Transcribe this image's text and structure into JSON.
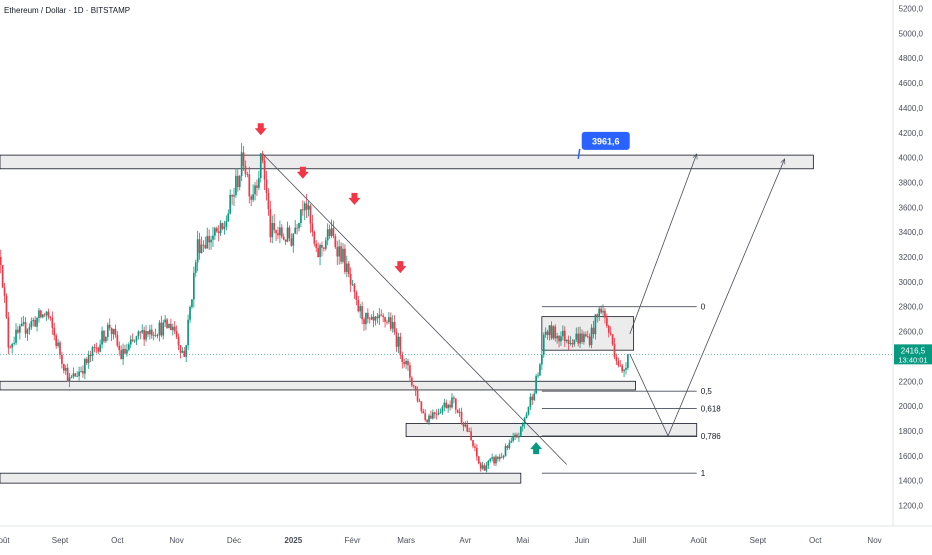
{
  "header": {
    "title": "Ethereum / Dollar · 1D · BITSTAMP"
  },
  "price_tag": {
    "price": "2416,5",
    "countdown": "13:40:01"
  },
  "target_callout": {
    "label": "3961,6"
  },
  "fib_labels": [
    "0",
    "0,5",
    "0,618",
    "0,786",
    "1"
  ],
  "colors": {
    "up": "#089981",
    "down": "#f23645",
    "arrow_down": "#f23645",
    "arrow_up": "#089981",
    "callout": "#2962ff",
    "zone_fill": "#e6e6e6",
    "zone_stroke": "#131722",
    "price_line": "#089981"
  },
  "chart_data": {
    "type": "candlestick",
    "title": "Ethereum / Dollar · 1D · BITSTAMP",
    "ylim": [
      1130,
      5270
    ],
    "y_ticks": [
      "1200,0",
      "1400,0",
      "1600,0",
      "1800,0",
      "2000,0",
      "2200,0",
      "2400,0",
      "2600,0",
      "2800,0",
      "3000,0",
      "3200,0",
      "3400,0",
      "3600,0",
      "3800,0",
      "4000,0",
      "4200,0",
      "4400,0",
      "4600,0",
      "4800,0",
      "5000,0",
      "5200,0"
    ],
    "x_ticks": [
      "oût",
      "Sept",
      "Oct",
      "Nov",
      "Déc",
      "2025",
      "Févr",
      "Mars",
      "Avr",
      "Mai",
      "Juin",
      "Juill",
      "Août",
      "Sept",
      "Oct",
      "Nov"
    ],
    "price_path": [
      [
        "2024-08-01",
        3200
      ],
      [
        "2024-08-05",
        2500
      ],
      [
        "2024-08-15",
        2650
      ],
      [
        "2024-08-25",
        2750
      ],
      [
        "2024-09-06",
        2200
      ],
      [
        "2024-09-15",
        2350
      ],
      [
        "2024-09-27",
        2650
      ],
      [
        "2024-10-03",
        2400
      ],
      [
        "2024-10-15",
        2600
      ],
      [
        "2024-10-30",
        2650
      ],
      [
        "2024-11-05",
        2400
      ],
      [
        "2024-11-12",
        3300
      ],
      [
        "2024-11-25",
        3400
      ],
      [
        "2024-12-06",
        4000
      ],
      [
        "2024-12-10",
        3700
      ],
      [
        "2024-12-16",
        4000
      ],
      [
        "2024-12-20",
        3400
      ],
      [
        "2024-12-31",
        3350
      ],
      [
        "2025-01-07",
        3700
      ],
      [
        "2025-01-13",
        3200
      ],
      [
        "2025-01-20",
        3400
      ],
      [
        "2025-01-27",
        3200
      ],
      [
        "2025-02-03",
        2800
      ],
      [
        "2025-02-10",
        2650
      ],
      [
        "2025-02-20",
        2700
      ],
      [
        "2025-02-25",
        2500
      ],
      [
        "2025-03-04",
        2200
      ],
      [
        "2025-03-11",
        1900
      ],
      [
        "2025-03-25",
        2050
      ],
      [
        "2025-04-01",
        1850
      ],
      [
        "2025-04-09",
        1500
      ],
      [
        "2025-04-20",
        1600
      ],
      [
        "2025-04-30",
        1800
      ],
      [
        "2025-05-09",
        2250
      ],
      [
        "2025-05-13",
        2600
      ],
      [
        "2025-05-25",
        2550
      ],
      [
        "2025-06-05",
        2550
      ],
      [
        "2025-06-11",
        2800
      ],
      [
        "2025-06-17",
        2500
      ],
      [
        "2025-06-22",
        2250
      ],
      [
        "2025-06-25",
        2416.5
      ]
    ],
    "fib_levels": [
      {
        "label": "0",
        "price": 2800
      },
      {
        "label": "0,5",
        "price": 2120
      },
      {
        "label": "0,618",
        "price": 1980
      },
      {
        "label": "0,786",
        "price": 1760
      },
      {
        "label": "1",
        "price": 1460
      }
    ],
    "zones": [
      {
        "from": "2024-07-25",
        "to": "2025-09-30",
        "low": 3910,
        "high": 4020
      },
      {
        "from": "2024-07-25",
        "to": "2025-06-29",
        "low": 2130,
        "high": 2200
      },
      {
        "from": "2025-03-01",
        "to": "2025-07-31",
        "low": 1755,
        "high": 1860
      },
      {
        "from": "2024-07-25",
        "to": "2025-04-30",
        "low": 1380,
        "high": 1460
      },
      {
        "from": "2025-05-11",
        "to": "2025-06-28",
        "low": 2450,
        "high": 2720
      }
    ],
    "downtrend_line": [
      [
        "2024-12-16",
        4030
      ],
      [
        "2025-05-24",
        1530
      ]
    ],
    "projections": [
      [
        [
          "2025-06-26",
          2580
        ],
        [
          "2025-07-31",
          4030
        ]
      ],
      [
        [
          "2025-06-26",
          2420
        ],
        [
          "2025-07-16",
          1760
        ],
        [
          "2025-09-15",
          3990
        ]
      ]
    ],
    "target_price": 3961.6,
    "last_price": 2416.5,
    "down_arrows": [
      "2024-12-15",
      "2025-01-06",
      "2025-02-02",
      "2025-02-26"
    ],
    "up_arrow": "2025-05-08"
  }
}
